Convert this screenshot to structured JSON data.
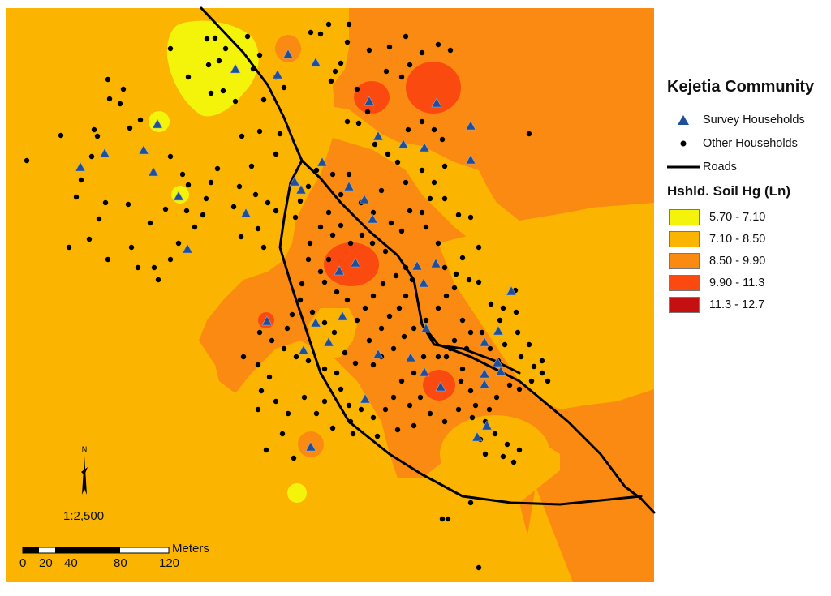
{
  "map": {
    "scale_ratio": "1:2,500",
    "north_label": "N",
    "scale_bar": {
      "unit": "Meters",
      "ticks": [
        "0",
        "20",
        "40",
        "80",
        "120"
      ]
    }
  },
  "legend": {
    "title": "Kejetia Community",
    "survey_label": "Survey Households",
    "other_label": "Other Households",
    "roads_label": "Roads",
    "soil_title": "Hshld. Soil Hg (Ln)",
    "classes": [
      {
        "label": "5.70 - 7.10",
        "color": "#f4f40a"
      },
      {
        "label": "7.10 - 8.50",
        "color": "#fbb400"
      },
      {
        "label": "8.50 - 9.90",
        "color": "#fb8a12"
      },
      {
        "label": "9.90 - 11.3",
        "color": "#fb4a10"
      },
      {
        "label": "11.3 - 12.7",
        "color": "#c41010"
      }
    ]
  },
  "colors": {
    "survey_marker": "#1f4e9b",
    "household_dot": "#000000",
    "road": "#000000"
  }
}
